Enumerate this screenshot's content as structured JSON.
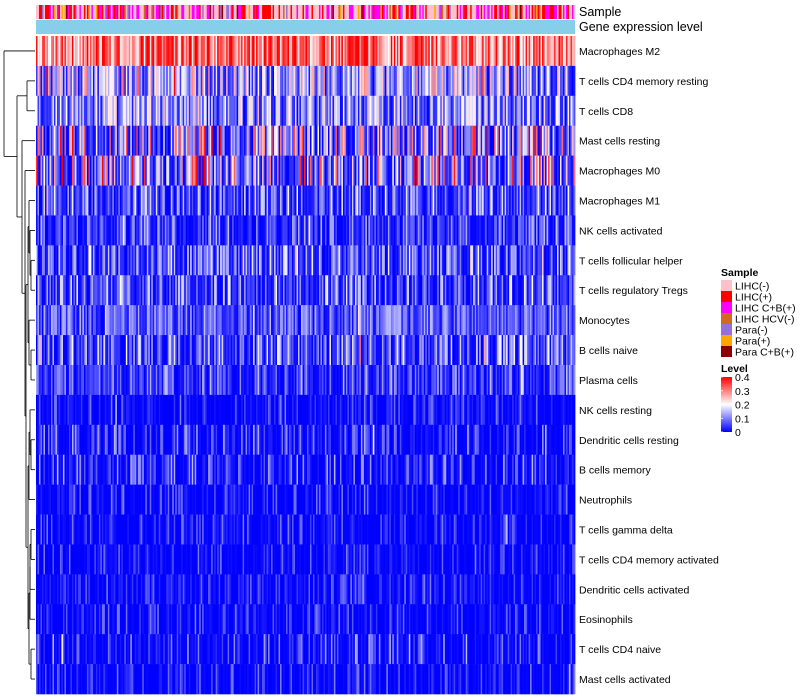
{
  "chart_data": {
    "type": "heatmap",
    "title": "",
    "annotation_tracks": [
      "Sample",
      "Gene expression level"
    ],
    "rows": [
      "Macrophages M2",
      "T cells CD4 memory resting",
      "T cells CD8",
      "Mast cells resting",
      "Macrophages M0",
      "Macrophages M1",
      "NK cells activated",
      "T cells follicular helper",
      "T cells regulatory  Tregs",
      "Monocytes",
      "B cells naive",
      "Plasma cells",
      "NK cells resting",
      "Dendritic cells resting",
      "B cells memory",
      "Neutrophils",
      "T cells gamma delta",
      "T cells CD4 memory activated",
      "Dendritic cells activated",
      "Eosinophils",
      "T cells CD4 naive",
      "Mast cells activated"
    ],
    "row_mean_levels": [
      0.3,
      0.12,
      0.11,
      0.06,
      0.05,
      0.07,
      0.06,
      0.06,
      0.05,
      0.09,
      0.05,
      0.06,
      0.03,
      0.03,
      0.02,
      0.02,
      0.01,
      0.01,
      0.01,
      0.01,
      0.01,
      0.01
    ],
    "row_max_levels": [
      0.4,
      0.3,
      0.25,
      0.4,
      0.4,
      0.2,
      0.15,
      0.2,
      0.2,
      0.15,
      0.2,
      0.15,
      0.1,
      0.15,
      0.15,
      0.1,
      0.1,
      0.1,
      0.1,
      0.1,
      0.15,
      0.1
    ],
    "n_columns": 360,
    "sample_groups": [
      "LIHC(-)",
      "LIHC(+)",
      "LIHC C+B(+)",
      "LIHC HCV(-)",
      "Para(-)",
      "Para(+)",
      "Para C+B(+)"
    ],
    "sample_group_weights": [
      0.42,
      0.22,
      0.22,
      0.03,
      0.04,
      0.04,
      0.03
    ],
    "gene_expression_level_color": "#87CEEB",
    "color_scale": {
      "min": 0,
      "max": 0.4,
      "low_color": "#0000FF",
      "mid_color": "#FFFFFF",
      "high_color": "#FF0000",
      "ticks": [
        0.4,
        0.3,
        0.2,
        0.1,
        0
      ]
    }
  },
  "legend": {
    "sample_title": "Sample",
    "sample_items": [
      {
        "label": "LIHC(-)",
        "color": "#FFC0CB"
      },
      {
        "label": "LIHC(+)",
        "color": "#FF0000"
      },
      {
        "label": "LIHC C+B(+)",
        "color": "#FF00FF"
      },
      {
        "label": "LIHC HCV(-)",
        "color": "#D2691E"
      },
      {
        "label": "Para(-)",
        "color": "#9370DB"
      },
      {
        "label": "Para(+)",
        "color": "#FFA500"
      },
      {
        "label": "Para C+B(+)",
        "color": "#8B0000"
      }
    ],
    "level_title": "Level",
    "level_ticks": [
      "0.4",
      "0.3",
      "0.2",
      "0.1",
      "0"
    ]
  }
}
